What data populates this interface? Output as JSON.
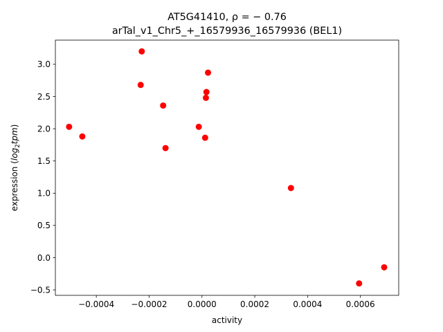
{
  "chart_data": {
    "type": "scatter",
    "title_line1": "AT5G41410, ρ = − 0.76",
    "title_line2": "arTal_v1_Chr5_+_16579936_16579936 (BEL1)",
    "xlabel": "activity",
    "ylabel_prefix": "expression (",
    "ylabel_math": "log",
    "ylabel_sub": "2",
    "ylabel_math2": "tpm",
    "ylabel_suffix": ")",
    "xlim": [
      -0.000555,
      0.000745
    ],
    "ylim": [
      -0.585,
      3.375
    ],
    "xticks": [
      {
        "value": -0.0004,
        "label": "−0.0004"
      },
      {
        "value": -0.0002,
        "label": "−0.0002"
      },
      {
        "value": 0.0,
        "label": "0.0000"
      },
      {
        "value": 0.0002,
        "label": "0.0002"
      },
      {
        "value": 0.0004,
        "label": "0.0004"
      },
      {
        "value": 0.0006,
        "label": "0.0006"
      }
    ],
    "yticks": [
      {
        "value": -0.5,
        "label": "−0.5"
      },
      {
        "value": 0.0,
        "label": "0.0"
      },
      {
        "value": 0.5,
        "label": "0.5"
      },
      {
        "value": 1.0,
        "label": "1.0"
      },
      {
        "value": 1.5,
        "label": "1.5"
      },
      {
        "value": 2.0,
        "label": "2.0"
      },
      {
        "value": 2.5,
        "label": "2.5"
      },
      {
        "value": 3.0,
        "label": "3.0"
      }
    ],
    "marker_color": "#ff0000",
    "grid": false,
    "points": [
      {
        "x": -0.000228,
        "y": 3.2
      },
      {
        "x": 2.3e-05,
        "y": 2.87
      },
      {
        "x": -0.000232,
        "y": 2.68
      },
      {
        "x": 1.7e-05,
        "y": 2.57
      },
      {
        "x": 1.5e-05,
        "y": 2.48
      },
      {
        "x": -0.000147,
        "y": 2.36
      },
      {
        "x": -0.000503,
        "y": 2.03
      },
      {
        "x": -1.2e-05,
        "y": 2.03
      },
      {
        "x": -0.000453,
        "y": 1.88
      },
      {
        "x": 1.2e-05,
        "y": 1.86
      },
      {
        "x": -0.000138,
        "y": 1.7
      },
      {
        "x": 0.000337,
        "y": 1.08
      },
      {
        "x": 0.00069,
        "y": -0.15
      },
      {
        "x": 0.000595,
        "y": -0.4
      }
    ]
  }
}
